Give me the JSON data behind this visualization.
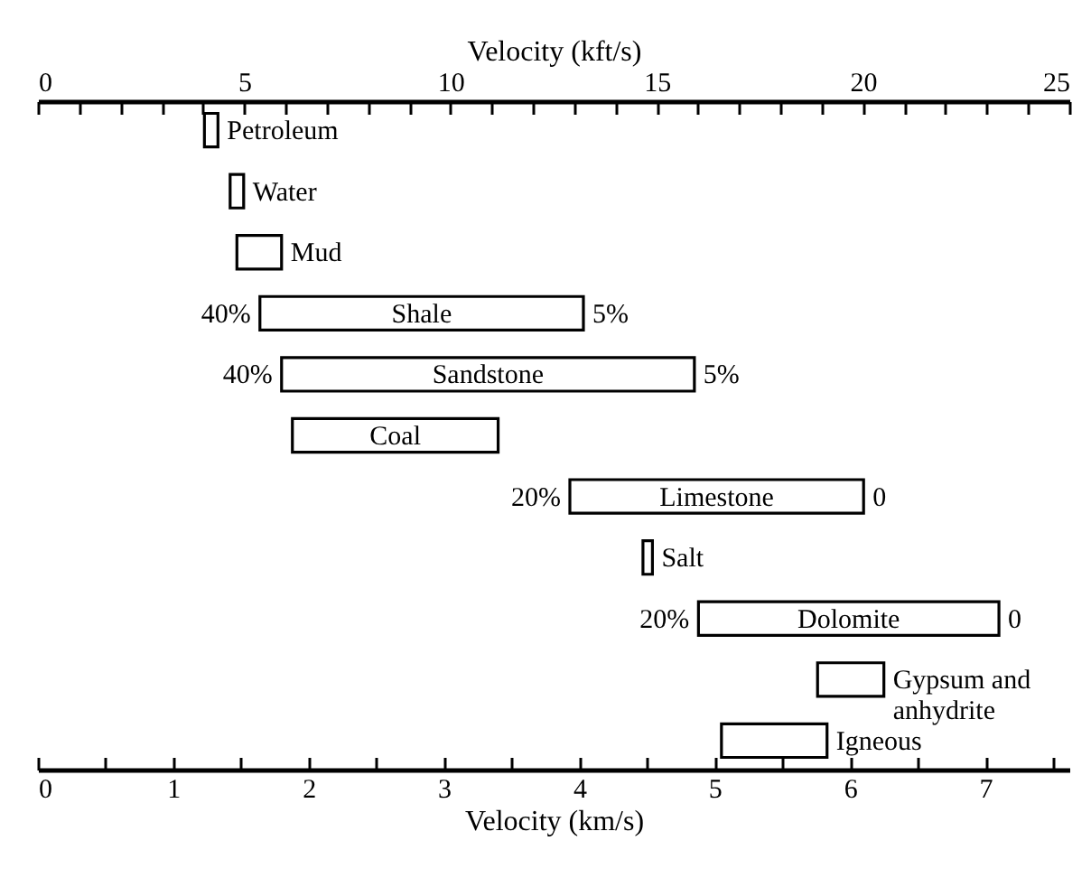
{
  "chart_data": {
    "type": "bar",
    "orientation": "horizontal",
    "xlabel": "Velocity (km/s)",
    "x2label": "Velocity (kft/s)",
    "categories": [
      "Petroleum",
      "Water",
      "Mud",
      "Shale",
      "Sandstone",
      "Coal",
      "Limestone",
      "Salt",
      "Dolomite",
      "Gypsum and anhydrite",
      "Igneous"
    ],
    "base": [
      1.23,
      1.42,
      1.47,
      1.64,
      1.8,
      1.88,
      3.93,
      4.47,
      4.88,
      5.76,
      5.05
    ],
    "values": [
      0.1,
      0.1,
      0.33,
      2.39,
      3.05,
      1.52,
      2.17,
      0.07,
      2.22,
      0.49,
      0.78
    ],
    "color": "#ffffff",
    "xlim": [
      0,
      7.62
    ],
    "xticks": [
      0,
      {
        "value": 0.5,
        "label": null
      },
      1,
      {
        "value": 1.5,
        "label": null
      },
      2,
      {
        "value": 2.5,
        "label": null
      },
      3,
      {
        "value": 3.5,
        "label": null
      },
      4,
      {
        "value": 4.5,
        "label": null
      },
      5,
      {
        "value": 5.5,
        "label": null
      },
      6,
      {
        "value": 6.5,
        "label": null
      },
      7,
      {
        "value": 7.5,
        "label": null
      }
    ],
    "x2lim": [
      0,
      25
    ],
    "x2ticks": [
      0,
      {
        "value": 1,
        "label": null
      },
      {
        "value": 2,
        "label": null
      },
      {
        "value": 3,
        "label": null
      },
      {
        "value": 4,
        "label": null
      },
      5,
      {
        "value": 6,
        "label": null
      },
      {
        "value": 7,
        "label": null
      },
      {
        "value": 8,
        "label": null
      },
      {
        "value": 9,
        "label": null
      },
      10,
      {
        "value": 11,
        "label": null
      },
      {
        "value": 12,
        "label": null
      },
      {
        "value": 13,
        "label": null
      },
      {
        "value": 14,
        "label": null
      },
      15,
      {
        "value": 16,
        "label": null
      },
      {
        "value": 17,
        "label": null
      },
      {
        "value": 18,
        "label": null
      },
      {
        "value": 19,
        "label": null
      },
      20,
      {
        "value": 21,
        "label": null
      },
      {
        "value": 22,
        "label": null
      },
      {
        "value": 23,
        "label": null
      },
      {
        "value": 24,
        "label": null
      },
      25
    ],
    "annotations": [
      {
        "text": "40%",
        "x": 1.64,
        "y": "Shale"
      },
      {
        "text": "5%",
        "x": 4.03,
        "y": "Shale"
      },
      {
        "text": "40%",
        "x": 1.8,
        "y": "Sandstone"
      },
      {
        "text": "5%",
        "x": 4.85,
        "y": "Sandstone"
      },
      {
        "text": "20%",
        "x": 3.93,
        "y": "Limestone"
      },
      {
        "text": "0",
        "x": 6.1,
        "y": "Limestone"
      },
      {
        "text": "20%",
        "x": 4.88,
        "y": "Dolomite"
      },
      {
        "text": "0",
        "x": 7.1,
        "y": "Dolomite"
      }
    ],
    "grid": false
  }
}
